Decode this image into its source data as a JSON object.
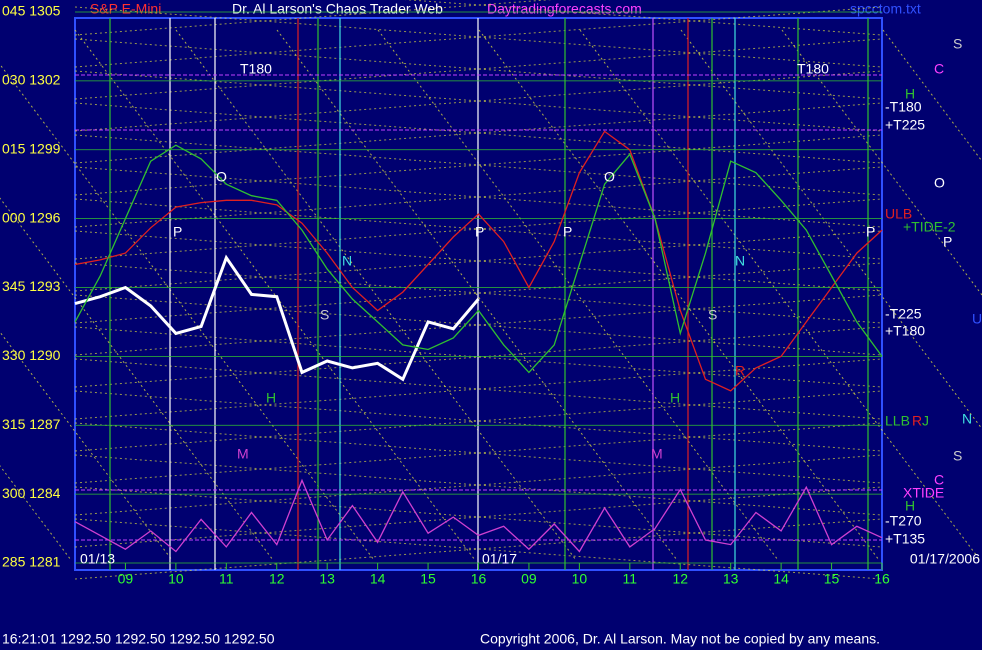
{
  "chart_data": {
    "type": "line",
    "title": "Dr. Al Larson's Chaos Trader Web",
    "symbol": "S&P E-Mini",
    "site": "Daytradingforecasts.com",
    "file": "spcctom.txt",
    "status": "16:21:01  1292.50 1292.50 1292.50 1292.50",
    "copyright": "Copyright 2006, Dr. Al Larson. May not be copied by any means.",
    "dates": [
      "01/13",
      "01/17",
      "01/17/2006"
    ],
    "x": [
      0,
      0.5,
      1,
      1.5,
      2,
      2.5,
      3,
      3.5,
      4,
      4.5,
      5,
      5.5,
      6,
      6.5,
      7,
      7.5,
      8,
      8.5,
      9,
      9.5,
      10,
      10.5,
      11,
      11.5,
      12,
      12.5,
      13,
      13.5,
      14,
      14.5,
      15,
      15.5,
      16
    ],
    "xlim": [
      0,
      16
    ],
    "xticks": [
      {
        "value": 1,
        "label": "09"
      },
      {
        "value": 2,
        "label": "10"
      },
      {
        "value": 3,
        "label": "11"
      },
      {
        "value": 4,
        "label": "12"
      },
      {
        "value": 5,
        "label": "13"
      },
      {
        "value": 6,
        "label": "14"
      },
      {
        "value": 7,
        "label": "15"
      },
      {
        "value": 8,
        "label": "16"
      },
      {
        "value": 9,
        "label": "09"
      },
      {
        "value": 10,
        "label": "10"
      },
      {
        "value": 11,
        "label": "11"
      },
      {
        "value": 12,
        "label": "12"
      },
      {
        "value": 13,
        "label": "13"
      },
      {
        "value": 14,
        "label": "14"
      },
      {
        "value": 15,
        "label": "15"
      },
      {
        "value": 16,
        "label": "16"
      }
    ],
    "ylim": [
      1281,
      1305
    ],
    "yticks": [
      {
        "value": 1305,
        "label": "045 1305"
      },
      {
        "value": 1302,
        "label": "030 1302"
      },
      {
        "value": 1299,
        "label": "015 1299"
      },
      {
        "value": 1296,
        "label": "000 1296"
      },
      {
        "value": 1293,
        "label": "345 1293"
      },
      {
        "value": 1290,
        "label": "330 1290"
      },
      {
        "value": 1287,
        "label": "315 1287"
      },
      {
        "value": 1284,
        "label": "300 1284"
      },
      {
        "value": 1281,
        "label": "285 1281"
      }
    ],
    "series": [
      {
        "color": "#ffffff",
        "values": [
          1292.3,
          1292.6,
          1293.0,
          1292.2,
          1291.0,
          1291.3,
          1294.3,
          1292.7,
          1292.6,
          1289.3,
          1289.8,
          1289.5,
          1289.7,
          1289.0,
          1291.5,
          1291.2,
          1292.5,
          null,
          null,
          null,
          null,
          null,
          null,
          null,
          null,
          null,
          null,
          null,
          null,
          null,
          null,
          null,
          null
        ]
      },
      {
        "color": "#e02020",
        "values": [
          1294,
          1294.2,
          1294.5,
          1295.6,
          1296.5,
          1296.7,
          1296.8,
          1296.8,
          1296.6,
          1295.8,
          1294.5,
          1293,
          1292,
          1292.8,
          1294,
          1295.2,
          1296.2,
          1295,
          1293,
          1295,
          1298,
          1299.8,
          1299,
          1296,
          1292,
          1289,
          1288.5,
          1289.5,
          1290,
          1291.5,
          1293,
          1294.5,
          1295.5
        ]
      },
      {
        "color": "#30c030",
        "values": [
          1291.5,
          1293.5,
          1296,
          1298.5,
          1299.2,
          1298.6,
          1297.5,
          1297,
          1296.8,
          1295.5,
          1293.8,
          1292.5,
          1291.5,
          1290.5,
          1290.3,
          1290.8,
          1292,
          1290.5,
          1289.3,
          1290.5,
          1294,
          1297.5,
          1298.8,
          1296,
          1291,
          1294.5,
          1298.5,
          1298,
          1296.8,
          1295.5,
          1293.5,
          1291.5,
          1290
        ]
      },
      {
        "color": "#d040d0",
        "values": [
          1282.8,
          1282.2,
          1281.6,
          1282.4,
          1281.5,
          1282.9,
          1281.7,
          1283.2,
          1281.8,
          1284.6,
          1282.0,
          1283.5,
          1281.9,
          1284.1,
          1282.3,
          1283.0,
          1282.2,
          1282.6,
          1281.6,
          1282.7,
          1281.5,
          1283.4,
          1281.7,
          1282.5,
          1284.2,
          1282.0,
          1281.8,
          1283.2,
          1282.4,
          1284.3,
          1281.8,
          1282.6,
          1282.1
        ]
      }
    ],
    "annotations": [
      "T180",
      "T180",
      "O",
      "O",
      "P",
      "P",
      "P",
      "P",
      "N",
      "N",
      "S",
      "S",
      "H",
      "H",
      "M",
      "M",
      "R",
      "S",
      "C",
      "H",
      "-T180",
      "+T225",
      "O",
      "ULB",
      "+TIDE-2",
      "P",
      "-T225",
      "+T180",
      "U",
      "LLB",
      "R",
      "J",
      "N",
      "S",
      "C",
      "XTIDE",
      "H",
      "-T270",
      "+T135"
    ]
  }
}
